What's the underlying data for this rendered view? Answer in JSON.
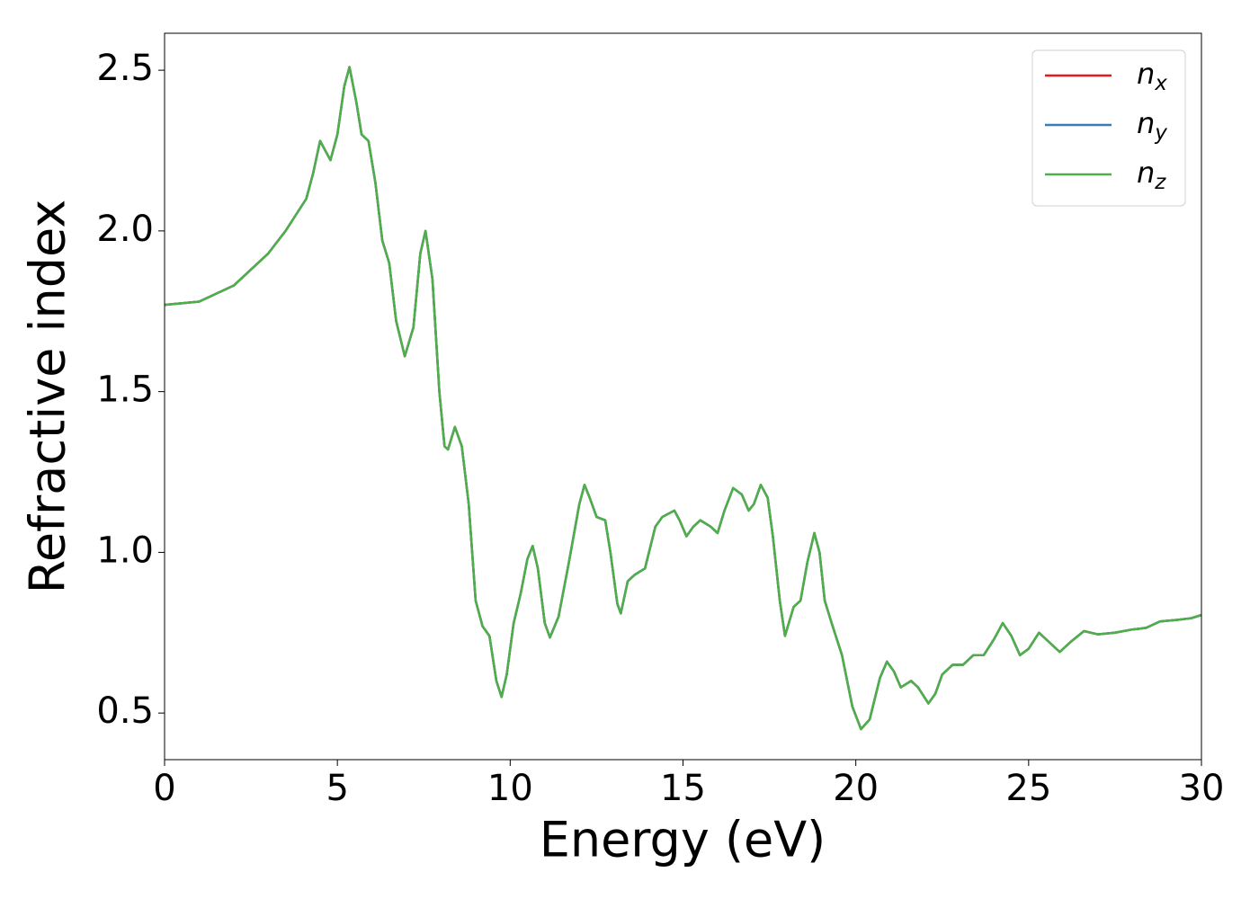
{
  "chart_data": {
    "type": "line",
    "x_label": "Energy (eV)",
    "y_label": "Refractive index",
    "x": [
      0,
      1,
      2,
      3,
      3.5,
      3.8,
      4.1,
      4.3,
      4.5,
      4.8,
      5.0,
      5.2,
      5.35,
      5.55,
      5.7,
      5.9,
      6.1,
      6.3,
      6.5,
      6.7,
      6.95,
      7.2,
      7.4,
      7.55,
      7.75,
      7.95,
      8.1,
      8.2,
      8.4,
      8.6,
      8.8,
      9.0,
      9.2,
      9.4,
      9.6,
      9.75,
      9.9,
      10.1,
      10.3,
      10.5,
      10.65,
      10.8,
      11.0,
      11.15,
      11.4,
      11.7,
      12.0,
      12.15,
      12.3,
      12.5,
      12.75,
      12.9,
      13.1,
      13.2,
      13.4,
      13.6,
      13.9,
      14.2,
      14.4,
      14.75,
      14.9,
      15.1,
      15.3,
      15.5,
      15.8,
      16.0,
      16.2,
      16.45,
      16.7,
      16.9,
      17.05,
      17.25,
      17.45,
      17.6,
      17.8,
      17.95,
      18.2,
      18.4,
      18.6,
      18.8,
      18.95,
      19.1,
      19.3,
      19.6,
      19.9,
      20.15,
      20.4,
      20.7,
      20.9,
      21.1,
      21.3,
      21.6,
      21.8,
      22.1,
      22.3,
      22.5,
      22.8,
      23.1,
      23.4,
      23.7,
      24.0,
      24.25,
      24.5,
      24.75,
      25.0,
      25.3,
      25.6,
      25.9,
      26.2,
      26.6,
      27.0,
      27.5,
      28.0,
      28.4,
      28.8,
      29.3,
      29.7,
      30
    ],
    "series": [
      {
        "name": "nx",
        "color": "#e41a1c",
        "values": [
          1.77,
          1.78,
          1.83,
          1.93,
          2.0,
          2.05,
          2.1,
          2.18,
          2.28,
          2.22,
          2.3,
          2.45,
          2.51,
          2.4,
          2.3,
          2.28,
          2.15,
          1.97,
          1.9,
          1.72,
          1.61,
          1.7,
          1.93,
          2.0,
          1.85,
          1.5,
          1.33,
          1.32,
          1.39,
          1.33,
          1.15,
          0.85,
          0.77,
          0.74,
          0.6,
          0.55,
          0.62,
          0.78,
          0.87,
          0.98,
          1.02,
          0.95,
          0.78,
          0.735,
          0.8,
          0.97,
          1.15,
          1.21,
          1.17,
          1.11,
          1.1,
          1.0,
          0.84,
          0.81,
          0.91,
          0.93,
          0.95,
          1.08,
          1.11,
          1.13,
          1.1,
          1.05,
          1.08,
          1.1,
          1.08,
          1.06,
          1.13,
          1.2,
          1.18,
          1.13,
          1.15,
          1.21,
          1.17,
          1.05,
          0.85,
          0.74,
          0.83,
          0.85,
          0.97,
          1.06,
          1.0,
          0.85,
          0.78,
          0.68,
          0.52,
          0.45,
          0.48,
          0.61,
          0.66,
          0.63,
          0.58,
          0.6,
          0.58,
          0.53,
          0.56,
          0.62,
          0.65,
          0.65,
          0.68,
          0.68,
          0.73,
          0.78,
          0.74,
          0.68,
          0.7,
          0.75,
          0.72,
          0.69,
          0.72,
          0.755,
          0.745,
          0.75,
          0.76,
          0.765,
          0.785,
          0.79,
          0.795,
          0.805
        ]
      },
      {
        "name": "ny",
        "color": "#377eb8",
        "values": [
          1.77,
          1.78,
          1.83,
          1.93,
          2.0,
          2.05,
          2.1,
          2.18,
          2.28,
          2.22,
          2.3,
          2.45,
          2.51,
          2.4,
          2.3,
          2.28,
          2.15,
          1.97,
          1.9,
          1.72,
          1.61,
          1.7,
          1.93,
          2.0,
          1.85,
          1.5,
          1.33,
          1.32,
          1.39,
          1.33,
          1.15,
          0.85,
          0.77,
          0.74,
          0.6,
          0.55,
          0.62,
          0.78,
          0.87,
          0.98,
          1.02,
          0.95,
          0.78,
          0.735,
          0.8,
          0.97,
          1.15,
          1.21,
          1.17,
          1.11,
          1.1,
          1.0,
          0.84,
          0.81,
          0.91,
          0.93,
          0.95,
          1.08,
          1.11,
          1.13,
          1.1,
          1.05,
          1.08,
          1.1,
          1.08,
          1.06,
          1.13,
          1.2,
          1.18,
          1.13,
          1.15,
          1.21,
          1.17,
          1.05,
          0.85,
          0.74,
          0.83,
          0.85,
          0.97,
          1.06,
          1.0,
          0.85,
          0.78,
          0.68,
          0.52,
          0.45,
          0.48,
          0.61,
          0.66,
          0.63,
          0.58,
          0.6,
          0.58,
          0.53,
          0.56,
          0.62,
          0.65,
          0.65,
          0.68,
          0.68,
          0.73,
          0.78,
          0.74,
          0.68,
          0.7,
          0.75,
          0.72,
          0.69,
          0.72,
          0.755,
          0.745,
          0.75,
          0.76,
          0.765,
          0.785,
          0.79,
          0.795,
          0.805
        ]
      },
      {
        "name": "nz",
        "color": "#4daf4a",
        "values": [
          1.77,
          1.78,
          1.83,
          1.93,
          2.0,
          2.05,
          2.1,
          2.18,
          2.28,
          2.22,
          2.3,
          2.45,
          2.51,
          2.4,
          2.3,
          2.28,
          2.15,
          1.97,
          1.9,
          1.72,
          1.61,
          1.7,
          1.93,
          2.0,
          1.85,
          1.5,
          1.33,
          1.32,
          1.39,
          1.33,
          1.15,
          0.85,
          0.77,
          0.74,
          0.6,
          0.55,
          0.62,
          0.78,
          0.87,
          0.98,
          1.02,
          0.95,
          0.78,
          0.735,
          0.8,
          0.97,
          1.15,
          1.21,
          1.17,
          1.11,
          1.1,
          1.0,
          0.84,
          0.81,
          0.91,
          0.93,
          0.95,
          1.08,
          1.11,
          1.13,
          1.1,
          1.05,
          1.08,
          1.1,
          1.08,
          1.06,
          1.13,
          1.2,
          1.18,
          1.13,
          1.15,
          1.21,
          1.17,
          1.05,
          0.85,
          0.74,
          0.83,
          0.85,
          0.97,
          1.06,
          1.0,
          0.85,
          0.78,
          0.68,
          0.52,
          0.45,
          0.48,
          0.61,
          0.66,
          0.63,
          0.58,
          0.6,
          0.58,
          0.53,
          0.56,
          0.62,
          0.65,
          0.65,
          0.68,
          0.68,
          0.73,
          0.78,
          0.74,
          0.68,
          0.7,
          0.75,
          0.72,
          0.69,
          0.72,
          0.755,
          0.745,
          0.75,
          0.76,
          0.765,
          0.785,
          0.79,
          0.795,
          0.805
        ]
      }
    ],
    "xlim": [
      0,
      30
    ],
    "xticks": [
      0,
      5,
      10,
      15,
      20,
      25,
      30
    ],
    "ylim": [
      0.355,
      2.615
    ],
    "yticks": [
      0.5,
      {
        "value": 1,
        "label": "1.0"
      },
      1.5,
      {
        "value": 2,
        "label": "2.0"
      },
      2.5
    ],
    "grid": false,
    "legend": "upper right"
  }
}
